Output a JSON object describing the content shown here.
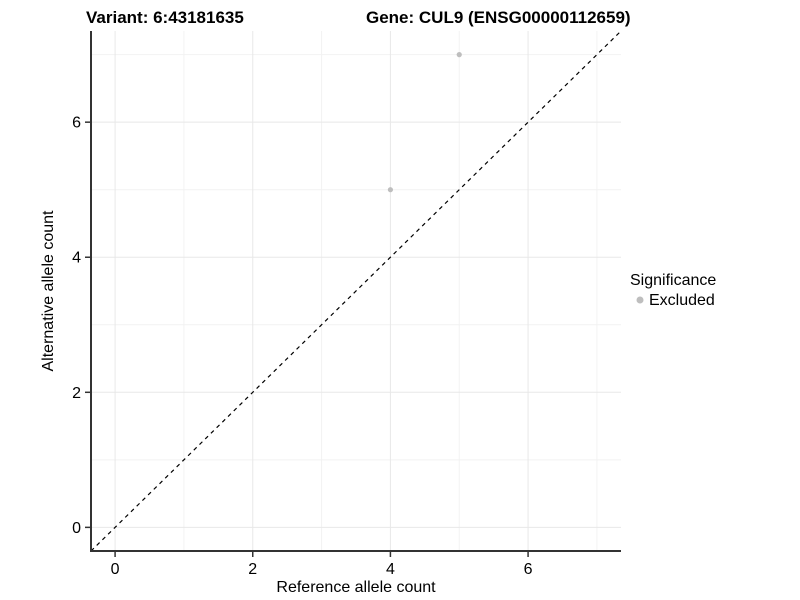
{
  "titles": {
    "variant": "Variant: 6:43181635",
    "gene": "Gene: CUL9 (ENSG00000112659)"
  },
  "chart_data": {
    "type": "scatter",
    "xlabel": "Reference allele count",
    "ylabel": "Alternative allele count",
    "xlim": [
      -0.35,
      7.35
    ],
    "ylim": [
      -0.35,
      7.35
    ],
    "x_major_ticks": [
      0,
      2,
      4,
      6
    ],
    "y_major_ticks": [
      0,
      2,
      4,
      6
    ],
    "x_minor_gridlines": [
      1,
      3,
      5,
      7
    ],
    "y_minor_gridlines": [
      1,
      3,
      5,
      7
    ],
    "grid": true,
    "identity_line": {
      "style": "dashed",
      "from": -0.35,
      "to": 7.35,
      "color": "#000000"
    },
    "series": [
      {
        "name": "Excluded",
        "color": "#bebebe",
        "points": [
          {
            "x": 4,
            "y": 5
          },
          {
            "x": 5,
            "y": 7
          }
        ]
      }
    ],
    "legend": {
      "title": "Significance",
      "position": "right",
      "items": [
        {
          "label": "Excluded",
          "color": "#bebebe"
        }
      ]
    }
  },
  "colors": {
    "background": "#ffffff",
    "axis_line": "#333333",
    "major_grid": "#e8e8e8",
    "minor_grid": "#f2f2f2",
    "tick_mark": "#333333",
    "text": "#000000",
    "point_excluded": "#bebebe"
  }
}
